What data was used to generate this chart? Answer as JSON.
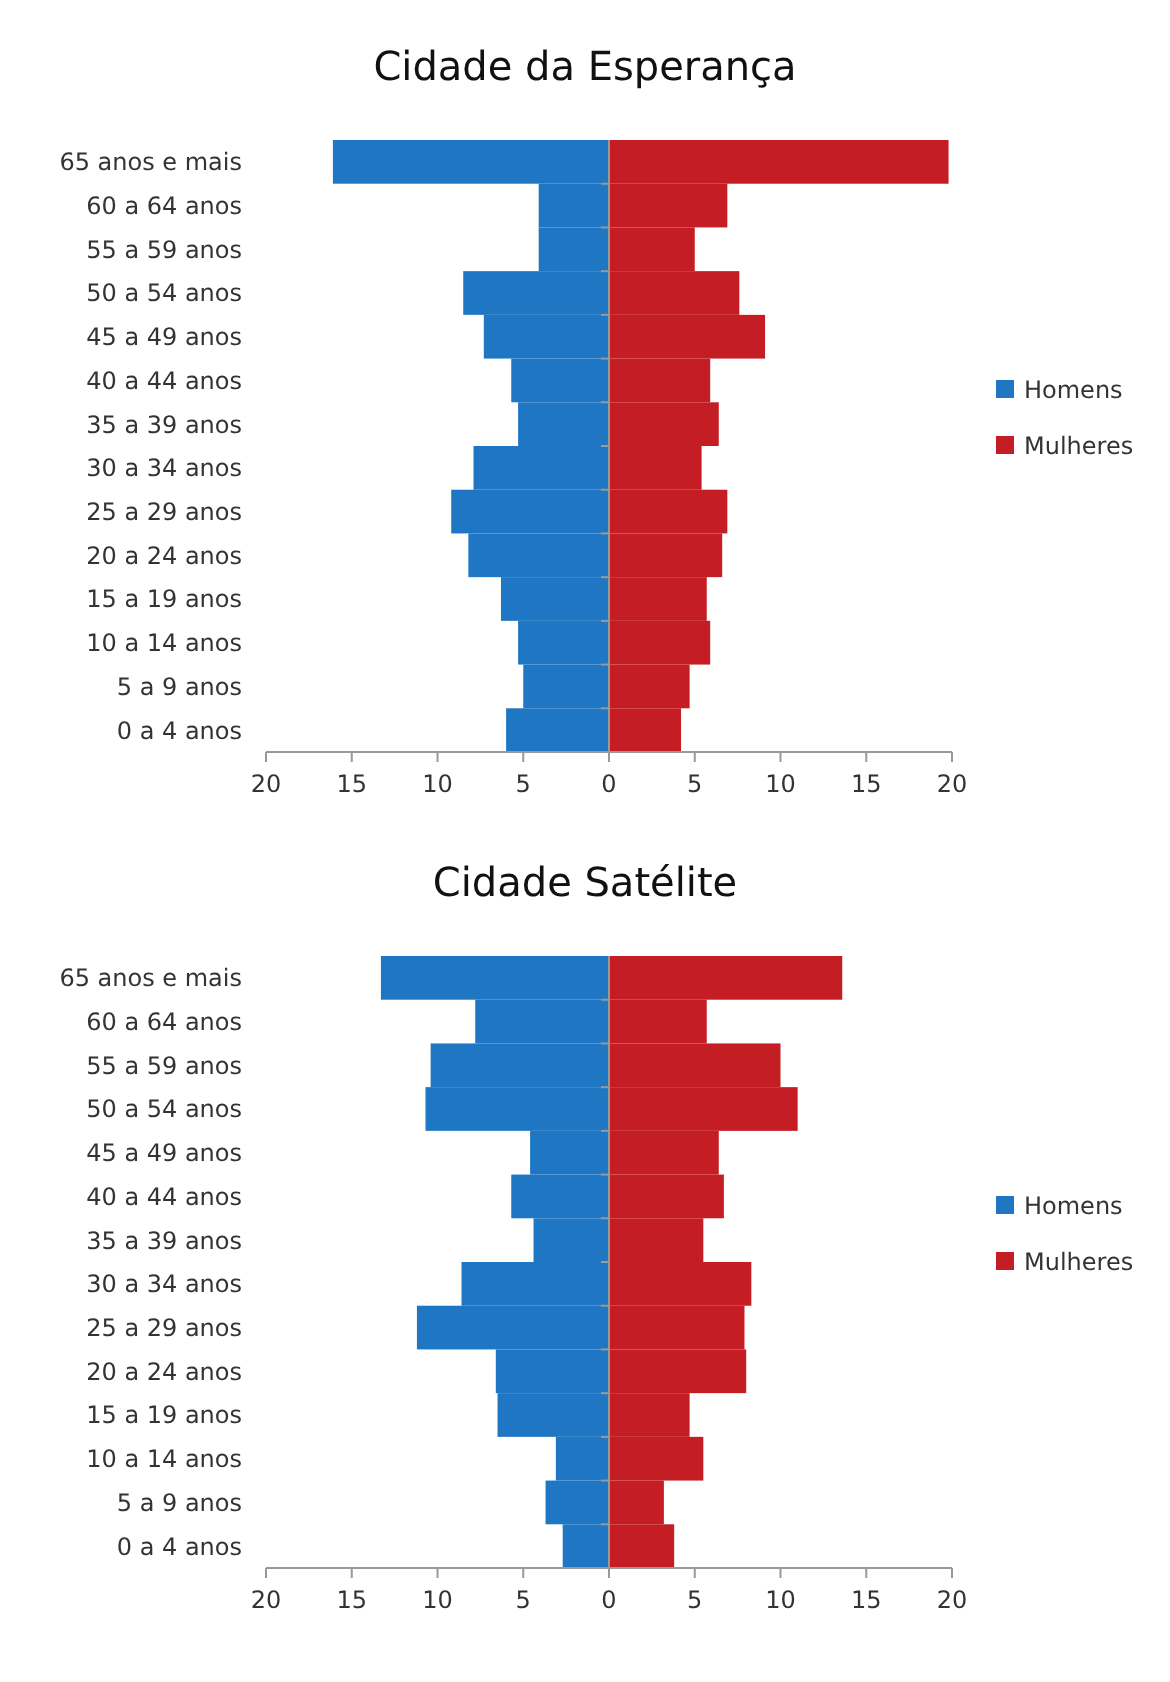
{
  "chart_data": [
    {
      "type": "bar",
      "title": "Cidade da Esperança",
      "orientation": "horizontal",
      "stacked": true,
      "legend": "right",
      "categories": [
        "65 anos e mais",
        "60 a 64 anos",
        "55 a 59 anos",
        "50 a 54 anos",
        "45 a 49 anos",
        "40 a 44 anos",
        "35 a 39 anos",
        "30 a 34 anos",
        "25 a 29 anos",
        "20 a 24 anos",
        "15 a 19 anos",
        "10 a 14 anos",
        "5 a 9 anos",
        "0 a 4 anos"
      ],
      "series": [
        {
          "name": "Homens",
          "color": "#1f77c4",
          "values": [
            -16.1,
            -4.1,
            -4.1,
            -8.5,
            -7.3,
            -5.7,
            -5.3,
            -7.9,
            -9.2,
            -8.2,
            -6.3,
            -5.3,
            -5.0,
            -6.0
          ]
        },
        {
          "name": "Mulheres",
          "color": "#c41e24",
          "values": [
            19.8,
            6.9,
            5.0,
            7.6,
            9.1,
            5.9,
            6.4,
            5.4,
            6.9,
            6.6,
            5.7,
            5.9,
            4.7,
            4.2
          ]
        }
      ],
      "xlim": [
        -20,
        20
      ],
      "xticks": [
        {
          "value": -20,
          "label": "20"
        },
        {
          "value": -15,
          "label": "15"
        },
        {
          "value": -10,
          "label": "10"
        },
        {
          "value": -5,
          "label": "5"
        },
        0,
        5,
        10,
        15,
        20
      ]
    },
    {
      "type": "bar",
      "title": "Cidade Satélite",
      "orientation": "horizontal",
      "stacked": true,
      "legend": "right",
      "categories": [
        "65 anos e mais",
        "60 a 64 anos",
        "55 a 59 anos",
        "50 a 54 anos",
        "45 a 49 anos",
        "40 a 44 anos",
        "35 a 39 anos",
        "30 a 34 anos",
        "25 a 29 anos",
        "20 a 24 anos",
        "15 a 19 anos",
        "10 a 14 anos",
        "5 a 9 anos",
        "0 a 4 anos"
      ],
      "series": [
        {
          "name": "Homens",
          "color": "#1f77c4",
          "values": [
            -13.3,
            -7.8,
            -10.4,
            -10.7,
            -4.6,
            -5.7,
            -4.4,
            -8.6,
            -11.2,
            -6.6,
            -6.5,
            -3.1,
            -3.7,
            -2.7
          ]
        },
        {
          "name": "Mulheres",
          "color": "#c41e24",
          "values": [
            13.6,
            5.7,
            10.0,
            11.0,
            6.4,
            6.7,
            5.5,
            8.3,
            7.9,
            8.0,
            4.7,
            5.5,
            3.2,
            3.8
          ]
        }
      ],
      "xlim": [
        -20,
        20
      ],
      "xticks": [
        {
          "value": -20,
          "label": "20"
        },
        {
          "value": -15,
          "label": "15"
        },
        {
          "value": -10,
          "label": "10"
        },
        {
          "value": -5,
          "label": "5"
        },
        0,
        5,
        10,
        15,
        20
      ]
    }
  ]
}
